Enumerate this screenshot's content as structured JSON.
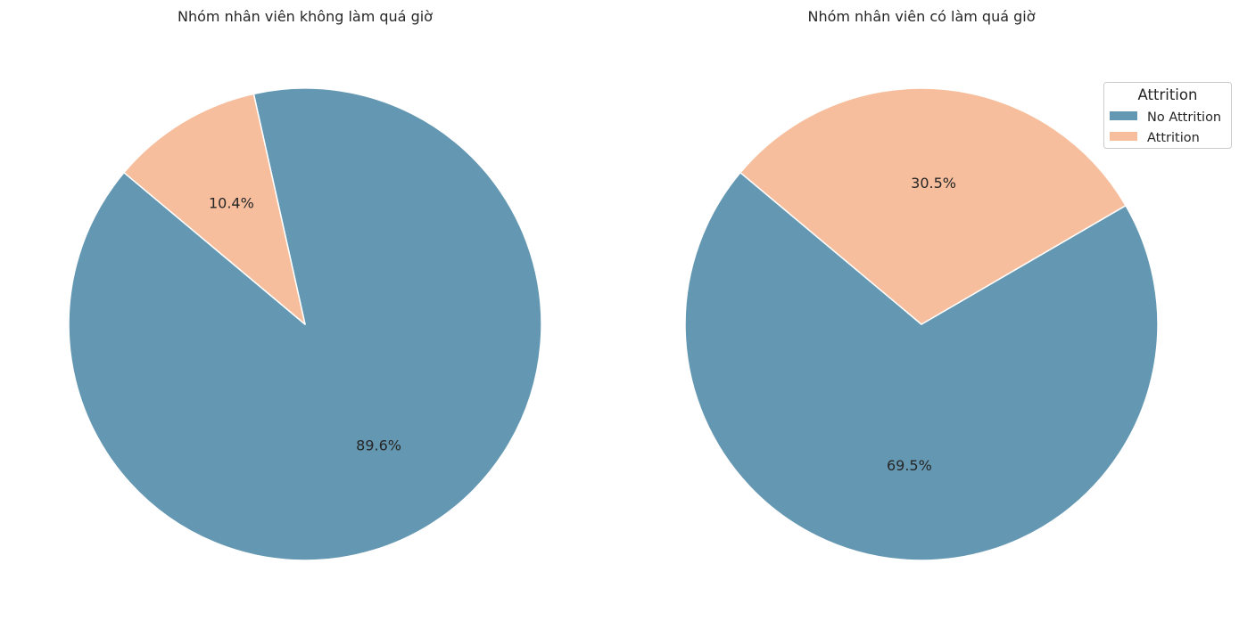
{
  "chart_data": [
    {
      "type": "pie",
      "title": "Nhóm nhân viên không làm quá giờ",
      "labels": [
        "No Attrition",
        "Attrition"
      ],
      "values": [
        89.6,
        10.4
      ],
      "value_labels": [
        "89.6%",
        "10.4%"
      ],
      "colors": [
        "#6497b1",
        "#f6be9c"
      ],
      "start_angle_deg": 140
    },
    {
      "type": "pie",
      "title": "Nhóm nhân viên có làm quá giờ",
      "labels": [
        "No Attrition",
        "Attrition"
      ],
      "values": [
        69.5,
        30.5
      ],
      "value_labels": [
        "69.5%",
        "30.5%"
      ],
      "colors": [
        "#6497b1",
        "#f6be9c"
      ],
      "start_angle_deg": 140,
      "legend": {
        "title": "Attrition",
        "entries": [
          "No Attrition",
          "Attrition"
        ],
        "placement": "upper right"
      }
    }
  ]
}
